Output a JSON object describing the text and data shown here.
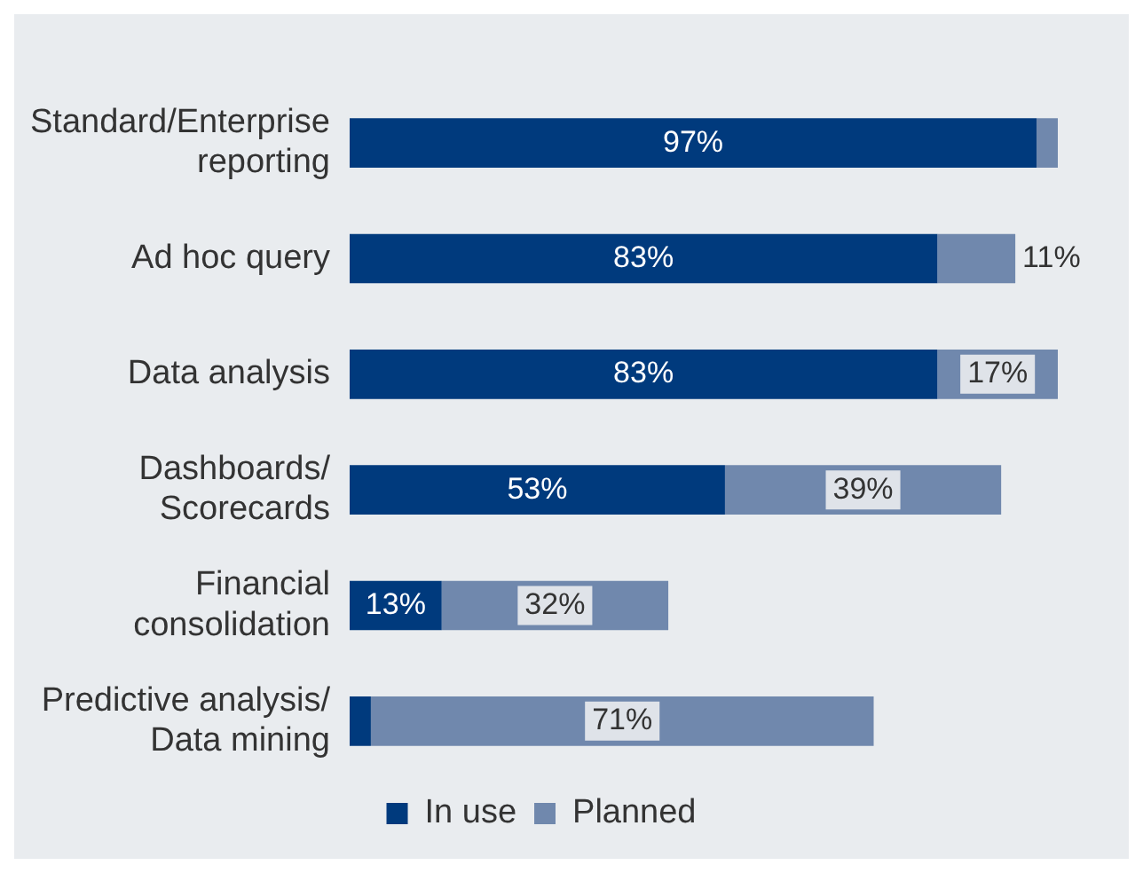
{
  "chart_data": {
    "type": "bar",
    "orientation": "horizontal",
    "stacked": true,
    "legend": "bottom",
    "categories": [
      "Standard/Enterprise reporting",
      "Ad hoc query",
      "Data analysis",
      "Dashboards/ Scorecards",
      "Financial consolidation",
      "Predictive analysis/ Data mining"
    ],
    "series": [
      {
        "name": "In use",
        "color": "#003a7d",
        "values": [
          97,
          83,
          83,
          53,
          13,
          3
        ],
        "value_labels": [
          "97%",
          "83%",
          "83%",
          "53%",
          "13%",
          null
        ]
      },
      {
        "name": "Planned",
        "color": "#7088ad",
        "values": [
          3,
          11,
          17,
          39,
          32,
          71
        ],
        "value_labels": [
          null,
          "11%",
          "17%",
          "39%",
          "32%",
          "71%"
        ]
      }
    ]
  }
}
